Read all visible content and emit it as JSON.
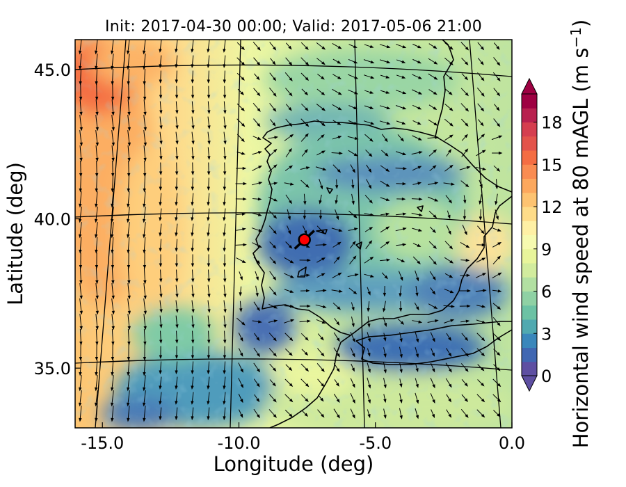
{
  "title": "Init: 2017-04-30 00:00; Valid: 2017-05-06 21:00",
  "x_axis": {
    "label": "Longitude (deg)",
    "ticks": [
      {
        "value": -15.0,
        "label": "-15.0"
      },
      {
        "value": -10.0,
        "label": "-10.0"
      },
      {
        "value": -5.0,
        "label": "-5.0"
      },
      {
        "value": 0.0,
        "label": "0.0"
      }
    ],
    "range": [
      -16.0,
      0.0
    ]
  },
  "y_axis": {
    "label": "Latitude (deg)",
    "ticks": [
      {
        "value": 35.0,
        "label": "35.0"
      },
      {
        "value": 40.0,
        "label": "40.0"
      },
      {
        "value": 45.0,
        "label": "45.0"
      }
    ],
    "range": [
      33.0,
      46.0
    ]
  },
  "colorbar": {
    "label": "Horizontal wind speed at 80 mAGL (m s",
    "label_sup": "−1",
    "label_close": ")",
    "ticks": [
      {
        "value": 0,
        "label": "0"
      },
      {
        "value": 3,
        "label": "3"
      },
      {
        "value": 6,
        "label": "6"
      },
      {
        "value": 9,
        "label": "9"
      },
      {
        "value": 12,
        "label": "12"
      },
      {
        "value": 15,
        "label": "15"
      },
      {
        "value": 18,
        "label": "18"
      }
    ],
    "min": 0,
    "max": 20,
    "levels": [
      "#5e4fa2",
      "#4067b2",
      "#3a87bb",
      "#50a9b0",
      "#6cc2a4",
      "#8fd1a4",
      "#b2e0a2",
      "#d2ec9e",
      "#e8f59b",
      "#f6fab0",
      "#fef0a5",
      "#fedc89",
      "#fdc371",
      "#fca85e",
      "#f98c52",
      "#f46d43",
      "#e3534b",
      "#d53e4f",
      "#b8214f",
      "#9e0142"
    ],
    "extend_low": "#5e4fa2",
    "extend_high": "#9e0142"
  },
  "marker": {
    "lon": -7.6,
    "lat": 39.3,
    "color": "#ff0000"
  },
  "colors": {
    "coast": "#000000",
    "graticule": "#000000",
    "arrows": "#000000"
  }
}
